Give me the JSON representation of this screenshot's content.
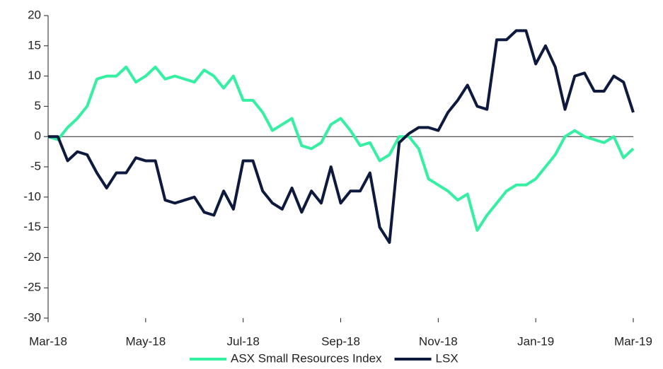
{
  "chart_data": {
    "type": "line",
    "x": [
      0,
      0.2,
      0.4,
      0.6,
      0.8,
      1,
      1.2,
      1.4,
      1.6,
      1.8,
      2,
      2.2,
      2.4,
      2.6,
      2.8,
      3,
      3.2,
      3.4,
      3.6,
      3.8,
      4,
      4.2,
      4.4,
      4.6,
      4.8,
      5,
      5.2,
      5.4,
      5.6,
      5.8,
      6,
      6.2,
      6.4,
      6.6,
      6.8,
      7,
      7.2,
      7.4,
      7.6,
      7.8,
      8,
      8.2,
      8.4,
      8.6,
      8.8,
      9,
      9.2,
      9.4,
      9.6,
      9.8,
      10,
      10.2,
      10.4,
      10.6,
      10.8,
      11,
      11.2,
      11.4,
      11.6,
      11.8,
      12
    ],
    "series": [
      {
        "name": "ASX Small Resources Index",
        "color": "#35f0a2",
        "values": [
          0,
          -0.5,
          1.5,
          3,
          5,
          9.5,
          10,
          10,
          11.5,
          9,
          10,
          11.5,
          9.5,
          10,
          9.5,
          9,
          11,
          10,
          8,
          10,
          6,
          6,
          4,
          1,
          2,
          3,
          -1.5,
          -2,
          -1,
          2,
          3,
          1,
          -1.5,
          -1,
          -4,
          -3,
          0,
          0,
          -2,
          -7,
          -8,
          -9,
          -10.5,
          -9.5,
          -15.5,
          -13,
          -11,
          -9,
          -8,
          -8,
          -7,
          -5,
          -3,
          0,
          1,
          0,
          -0.5,
          -1,
          0,
          -3.5,
          -2
        ]
      },
      {
        "name": "LSX",
        "color": "#0e1a3d",
        "values": [
          0,
          0,
          -4,
          -2.5,
          -3,
          -6,
          -8.5,
          -6,
          -6,
          -3.5,
          -4,
          -4,
          -10.5,
          -11,
          -10.5,
          -10,
          -12.5,
          -13,
          -9,
          -12,
          -4,
          -4,
          -9,
          -11,
          -12,
          -8.5,
          -12.5,
          -9,
          -11,
          -5,
          -11,
          -9,
          -9,
          -6,
          -15,
          -17.5,
          -1,
          0.5,
          1.5,
          1.5,
          1,
          4,
          6,
          8.5,
          5,
          4.5,
          16,
          16,
          17.5,
          17.5,
          12,
          15,
          11.5,
          4.5,
          10,
          10.5,
          7.5,
          7.5,
          10,
          9,
          4
        ]
      }
    ],
    "xlim": [
      0,
      12
    ],
    "xticks": [
      {
        "value": 0,
        "label": "Mar-18"
      },
      {
        "value": 2,
        "label": "May-18"
      },
      {
        "value": 4,
        "label": "Jul-18"
      },
      {
        "value": 6,
        "label": "Sep-18"
      },
      {
        "value": 8,
        "label": "Nov-18"
      },
      {
        "value": 10,
        "label": "Jan-19"
      },
      {
        "value": 12,
        "label": "Mar-19"
      }
    ],
    "ylim": [
      -30,
      20
    ],
    "yticks": [
      -30,
      -25,
      -20,
      -15,
      -10,
      -5,
      0,
      5,
      10,
      15,
      20
    ],
    "legend": "bottom"
  }
}
